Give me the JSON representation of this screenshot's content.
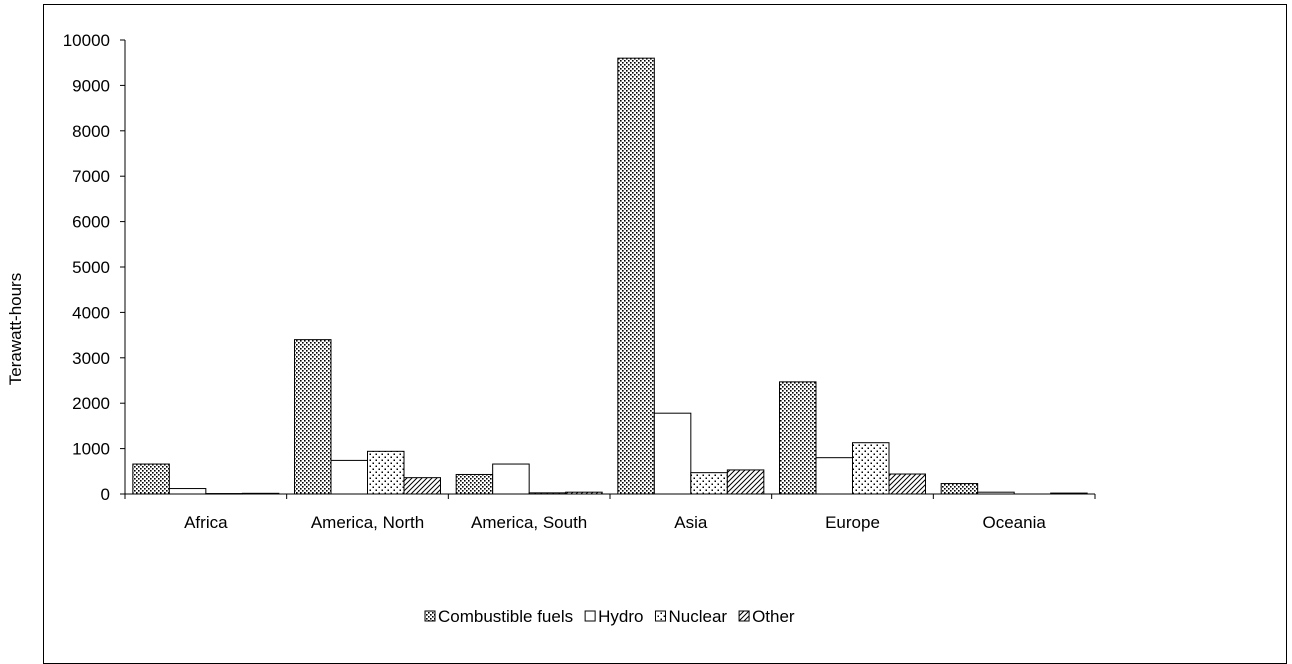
{
  "chart_data": {
    "type": "bar",
    "title": "",
    "xlabel": "",
    "ylabel": "Terawatt-hours",
    "ylim": [
      0,
      10000
    ],
    "yticks": [
      "0",
      "1000",
      "2000",
      "3000",
      "4000",
      "5000",
      "6000",
      "7000",
      "8000",
      "9000",
      "10000"
    ],
    "categories": [
      "Africa",
      "America, North",
      "America, South",
      "Asia",
      "Europe",
      "Oceania"
    ],
    "series": [
      {
        "name": "Combustible fuels",
        "pattern": "dense-dots",
        "values": [
          660,
          3400,
          430,
          9600,
          2470,
          230
        ]
      },
      {
        "name": "Hydro",
        "pattern": "plain-white",
        "values": [
          120,
          740,
          660,
          1780,
          800,
          40
        ]
      },
      {
        "name": "Nuclear",
        "pattern": "sparse-dots",
        "values": [
          10,
          940,
          25,
          470,
          1130,
          0
        ]
      },
      {
        "name": "Other",
        "pattern": "diagonal-hatch",
        "values": [
          15,
          360,
          40,
          530,
          440,
          20
        ]
      }
    ],
    "grid": false,
    "legend": "bottom",
    "colors": {
      "stroke": "#000000",
      "fill": "#ffffff"
    }
  }
}
